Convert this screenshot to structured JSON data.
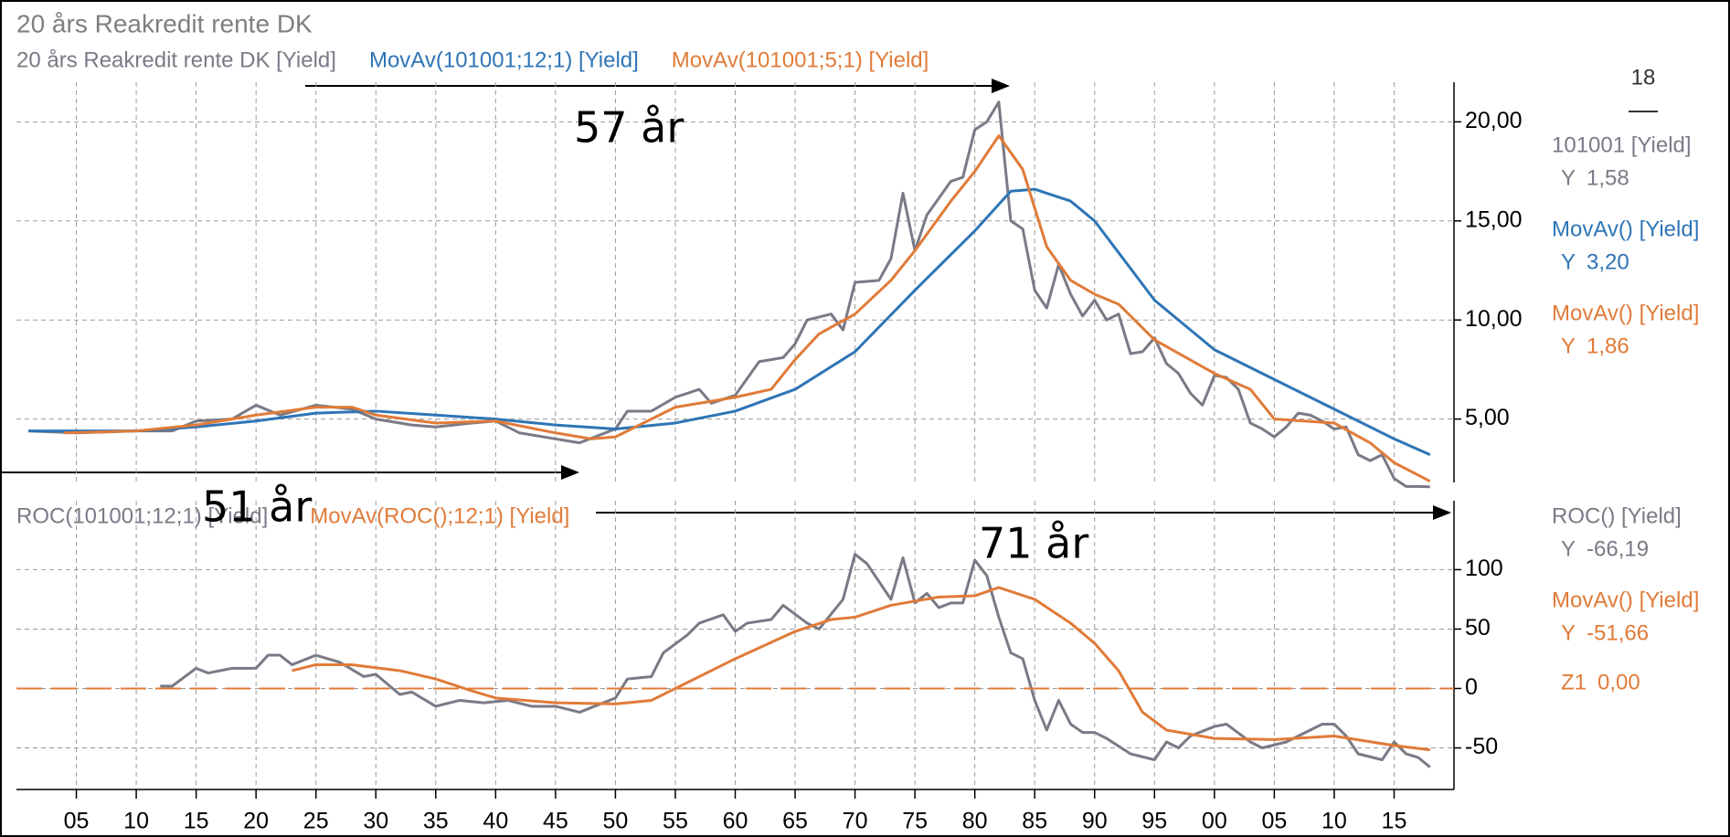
{
  "title": "20 års Reakredit rente DK",
  "cursor_label": "18",
  "annotations": [
    {
      "text": "57 år"
    },
    {
      "text": "51 år"
    },
    {
      "text": "71 år"
    }
  ],
  "chart_data": [
    {
      "type": "line",
      "xlim": [
        1900,
        2020
      ],
      "ylim": [
        1.8,
        22
      ],
      "yticks": [
        {
          "value": 5,
          "label": "5,00"
        },
        {
          "value": 10,
          "label": "10,00"
        },
        {
          "value": 15,
          "label": "15,00"
        },
        {
          "value": 20,
          "label": "20,00"
        }
      ],
      "grid": true,
      "series": [
        {
          "name": "20 års Reakredit rente DK [Yield]",
          "readout_name": "101001 [Yield]",
          "readout_axis": "Y",
          "last_label": "1,58",
          "color": "#7a7a86",
          "x": [
            1901,
            1905,
            1910,
            1913,
            1915,
            1918,
            1920,
            1922,
            1925,
            1928,
            1930,
            1933,
            1935,
            1938,
            1940,
            1942,
            1945,
            1947,
            1950,
            1951,
            1953,
            1955,
            1957,
            1958,
            1960,
            1962,
            1964,
            1965,
            1966,
            1968,
            1969,
            1970,
            1972,
            1973,
            1974,
            1975,
            1976,
            1978,
            1979,
            1980,
            1981,
            1982,
            1983,
            1984,
            1985,
            1986,
            1987,
            1988,
            1989,
            1990,
            1991,
            1992,
            1993,
            1994,
            1995,
            1996,
            1997,
            1998,
            1999,
            2000,
            2001,
            2002,
            2003,
            2004,
            2005,
            2006,
            2007,
            2008,
            2009,
            2010,
            2011,
            2012,
            2013,
            2014,
            2015,
            2016,
            2017,
            2018
          ],
          "values": [
            4.4,
            4.3,
            4.4,
            4.4,
            4.9,
            5.0,
            5.7,
            5.2,
            5.7,
            5.5,
            5.0,
            4.7,
            4.6,
            4.8,
            4.9,
            4.3,
            4.0,
            3.8,
            4.5,
            5.4,
            5.4,
            6.1,
            6.5,
            5.8,
            6.2,
            7.9,
            8.1,
            8.8,
            10.0,
            10.3,
            9.5,
            11.9,
            12.0,
            13.1,
            16.4,
            13.5,
            15.3,
            17.0,
            17.2,
            19.6,
            20.0,
            21.0,
            15.0,
            14.6,
            11.5,
            10.6,
            12.8,
            11.3,
            10.2,
            11.0,
            10.0,
            10.3,
            8.3,
            8.4,
            9.1,
            7.8,
            7.3,
            6.3,
            5.7,
            7.2,
            7.1,
            6.5,
            4.8,
            4.5,
            4.1,
            4.6,
            5.3,
            5.2,
            4.9,
            4.5,
            4.6,
            3.2,
            2.9,
            3.2,
            2.0,
            1.6,
            1.6,
            1.58
          ]
        },
        {
          "name": "MovAv(101001;12;1) [Yield]",
          "readout_name": "MovAv() [Yield]",
          "readout_axis": "Y",
          "last_label": "3,20",
          "color": "#2e75b6",
          "x": [
            1901,
            1910,
            1915,
            1920,
            1925,
            1930,
            1935,
            1940,
            1945,
            1950,
            1955,
            1960,
            1965,
            1970,
            1975,
            1980,
            1983,
            1985,
            1988,
            1990,
            1995,
            2000,
            2005,
            2010,
            2015,
            2018
          ],
          "values": [
            4.4,
            4.4,
            4.6,
            4.9,
            5.3,
            5.4,
            5.2,
            5.0,
            4.7,
            4.5,
            4.8,
            5.4,
            6.5,
            8.4,
            11.5,
            14.5,
            16.5,
            16.6,
            16.0,
            15.0,
            11.0,
            8.5,
            7.0,
            5.5,
            4.0,
            3.2
          ]
        },
        {
          "name": "MovAv(101001;5;1) [Yield]",
          "readout_name": "MovAv() [Yield]",
          "readout_axis": "Y",
          "last_label": "1,86",
          "color": "#e07b39",
          "x": [
            1904,
            1910,
            1915,
            1920,
            1925,
            1928,
            1930,
            1935,
            1940,
            1945,
            1948,
            1950,
            1955,
            1960,
            1963,
            1965,
            1967,
            1970,
            1973,
            1975,
            1978,
            1980,
            1982,
            1984,
            1986,
            1988,
            1990,
            1992,
            1995,
            2000,
            2003,
            2005,
            2010,
            2013,
            2015,
            2018
          ],
          "values": [
            4.3,
            4.4,
            4.7,
            5.2,
            5.6,
            5.6,
            5.2,
            4.8,
            4.9,
            4.3,
            4.0,
            4.1,
            5.6,
            6.1,
            6.5,
            8.0,
            9.3,
            10.3,
            12.0,
            13.5,
            16.0,
            17.5,
            19.3,
            17.6,
            13.7,
            12.0,
            11.3,
            10.8,
            9.0,
            7.3,
            6.5,
            5.0,
            4.8,
            3.8,
            2.8,
            1.86
          ]
        }
      ]
    },
    {
      "type": "line",
      "xlim": [
        1900,
        2020
      ],
      "ylim": [
        -85,
        158
      ],
      "xticks": [
        {
          "value": 1905,
          "label": "05"
        },
        {
          "value": 1910,
          "label": "10"
        },
        {
          "value": 1915,
          "label": "15"
        },
        {
          "value": 1920,
          "label": "20"
        },
        {
          "value": 1925,
          "label": "25"
        },
        {
          "value": 1930,
          "label": "30"
        },
        {
          "value": 1935,
          "label": "35"
        },
        {
          "value": 1940,
          "label": "40"
        },
        {
          "value": 1945,
          "label": "45"
        },
        {
          "value": 1950,
          "label": "50"
        },
        {
          "value": 1955,
          "label": "55"
        },
        {
          "value": 1960,
          "label": "60"
        },
        {
          "value": 1965,
          "label": "65"
        },
        {
          "value": 1970,
          "label": "70"
        },
        {
          "value": 1975,
          "label": "75"
        },
        {
          "value": 1980,
          "label": "80"
        },
        {
          "value": 1985,
          "label": "85"
        },
        {
          "value": 1990,
          "label": "90"
        },
        {
          "value": 1995,
          "label": "95"
        },
        {
          "value": 2000,
          "label": "00"
        },
        {
          "value": 2005,
          "label": "05"
        },
        {
          "value": 2010,
          "label": "10"
        },
        {
          "value": 2015,
          "label": "15"
        }
      ],
      "yticks": [
        -50,
        0,
        50,
        100
      ],
      "grid": true,
      "reference_line": {
        "name": "Z1",
        "value": 0,
        "label": "0,00",
        "color": "#e07b39"
      },
      "series": [
        {
          "name": "ROC(101001;12;1) [Yield]",
          "readout_name": "ROC() [Yield]",
          "readout_axis": "Y",
          "last_label": "-66,19",
          "color": "#7a7a86",
          "x": [
            1912,
            1913,
            1915,
            1916,
            1918,
            1920,
            1921,
            1922,
            1923,
            1925,
            1927,
            1929,
            1930,
            1932,
            1933,
            1935,
            1937,
            1939,
            1941,
            1943,
            1945,
            1947,
            1949,
            1950,
            1951,
            1953,
            1954,
            1956,
            1957,
            1959,
            1960,
            1961,
            1963,
            1964,
            1966,
            1967,
            1969,
            1970,
            1971,
            1972,
            1973,
            1974,
            1975,
            1976,
            1977,
            1978,
            1979,
            1980,
            1981,
            1982,
            1983,
            1984,
            1985,
            1986,
            1987,
            1988,
            1989,
            1990,
            1991,
            1993,
            1995,
            1996,
            1997,
            1998,
            2000,
            2001,
            2003,
            2004,
            2006,
            2008,
            2009,
            2010,
            2011,
            2012,
            2014,
            2015,
            2016,
            2017,
            2018
          ],
          "values": [
            2,
            2,
            17,
            13,
            17,
            17,
            28,
            28,
            20,
            28,
            22,
            10,
            12,
            -5,
            -3,
            -15,
            -10,
            -12,
            -10,
            -15,
            -15,
            -20,
            -12,
            -8,
            8,
            10,
            30,
            45,
            55,
            62,
            48,
            55,
            58,
            70,
            55,
            50,
            75,
            113,
            105,
            90,
            75,
            110,
            72,
            80,
            68,
            72,
            72,
            108,
            95,
            60,
            30,
            25,
            -10,
            -35,
            -10,
            -30,
            -37,
            -37,
            -42,
            -55,
            -60,
            -45,
            -50,
            -40,
            -32,
            -30,
            -45,
            -50,
            -45,
            -35,
            -30,
            -30,
            -40,
            -55,
            -60,
            -45,
            -55,
            -58,
            -66.19
          ]
        },
        {
          "name": "MovAv(ROC();12;1) [Yield]",
          "readout_name": "MovAv() [Yield]",
          "readout_axis": "Y",
          "last_label": "-51,66",
          "color": "#e07b39",
          "x": [
            1923,
            1925,
            1928,
            1932,
            1935,
            1938,
            1940,
            1945,
            1950,
            1953,
            1955,
            1960,
            1965,
            1968,
            1970,
            1973,
            1977,
            1980,
            1982,
            1985,
            1988,
            1990,
            1992,
            1994,
            1996,
            2000,
            2005,
            2010,
            2015,
            2018
          ],
          "values": [
            15,
            20,
            20,
            15,
            8,
            -2,
            -8,
            -12,
            -13,
            -10,
            0,
            25,
            48,
            58,
            60,
            70,
            77,
            78,
            85,
            75,
            55,
            38,
            15,
            -20,
            -35,
            -42,
            -43,
            -40,
            -48,
            -51.66
          ]
        }
      ]
    }
  ]
}
